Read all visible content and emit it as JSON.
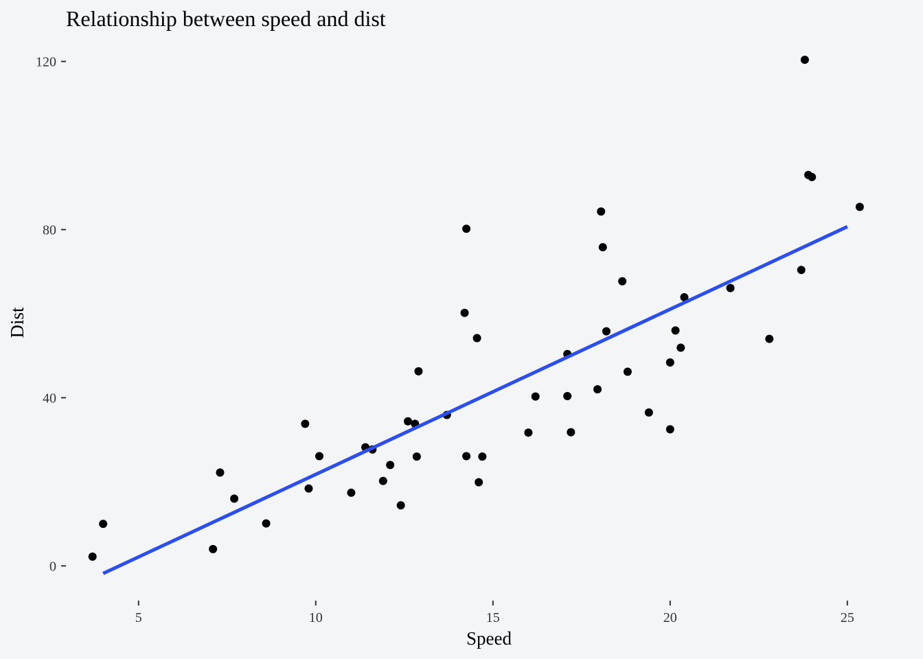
{
  "chart_data": {
    "type": "scatter",
    "title": "Relationship between speed and dist",
    "xlabel": "Speed",
    "ylabel": "Dist",
    "xlim": [
      2.95,
      26.05
    ],
    "ylim": [
      -6.8,
      125.8
    ],
    "x_ticks": [
      5,
      10,
      15,
      20,
      25
    ],
    "y_ticks": [
      0,
      40,
      80,
      120
    ],
    "grid": false,
    "colors": {
      "points": "#000000",
      "fit_line": "#2a4ef0",
      "background": "#f3f5f7"
    },
    "points": [
      {
        "x": 3.7,
        "y": 2.2
      },
      {
        "x": 4.0,
        "y": 10.0
      },
      {
        "x": 7.1,
        "y": 4.0
      },
      {
        "x": 7.3,
        "y": 22.2
      },
      {
        "x": 7.7,
        "y": 16.0
      },
      {
        "x": 8.6,
        "y": 10.1
      },
      {
        "x": 9.7,
        "y": 33.8
      },
      {
        "x": 9.8,
        "y": 18.4
      },
      {
        "x": 10.1,
        "y": 26.1
      },
      {
        "x": 11.0,
        "y": 17.4
      },
      {
        "x": 11.4,
        "y": 28.2
      },
      {
        "x": 11.6,
        "y": 27.7
      },
      {
        "x": 11.9,
        "y": 20.2
      },
      {
        "x": 12.1,
        "y": 24.0
      },
      {
        "x": 12.4,
        "y": 14.4
      },
      {
        "x": 12.6,
        "y": 34.4
      },
      {
        "x": 12.8,
        "y": 33.8
      },
      {
        "x": 12.85,
        "y": 26.0
      },
      {
        "x": 12.9,
        "y": 46.3
      },
      {
        "x": 13.7,
        "y": 35.9
      },
      {
        "x": 14.2,
        "y": 60.2
      },
      {
        "x": 14.25,
        "y": 80.2
      },
      {
        "x": 14.25,
        "y": 26.1
      },
      {
        "x": 14.55,
        "y": 54.2
      },
      {
        "x": 14.6,
        "y": 19.9
      },
      {
        "x": 14.7,
        "y": 26.0
      },
      {
        "x": 16.0,
        "y": 31.7
      },
      {
        "x": 16.2,
        "y": 40.3
      },
      {
        "x": 17.1,
        "y": 50.4
      },
      {
        "x": 17.1,
        "y": 40.4
      },
      {
        "x": 17.2,
        "y": 31.8
      },
      {
        "x": 17.95,
        "y": 42.0
      },
      {
        "x": 18.05,
        "y": 84.3
      },
      {
        "x": 18.1,
        "y": 75.8
      },
      {
        "x": 18.2,
        "y": 55.8
      },
      {
        "x": 18.65,
        "y": 67.7
      },
      {
        "x": 18.8,
        "y": 46.2
      },
      {
        "x": 19.4,
        "y": 36.5
      },
      {
        "x": 20.0,
        "y": 32.5
      },
      {
        "x": 20.0,
        "y": 48.4
      },
      {
        "x": 20.15,
        "y": 56.0
      },
      {
        "x": 20.3,
        "y": 51.9
      },
      {
        "x": 20.4,
        "y": 63.9
      },
      {
        "x": 21.7,
        "y": 66.1
      },
      {
        "x": 22.8,
        "y": 54.0
      },
      {
        "x": 23.7,
        "y": 70.4
      },
      {
        "x": 23.8,
        "y": 120.4
      },
      {
        "x": 23.9,
        "y": 93.0
      },
      {
        "x": 24.0,
        "y": 92.5
      },
      {
        "x": 25.35,
        "y": 85.4
      }
    ],
    "fit_line": {
      "x": [
        4.0,
        25.0
      ],
      "y": [
        -1.8,
        80.7
      ]
    }
  }
}
